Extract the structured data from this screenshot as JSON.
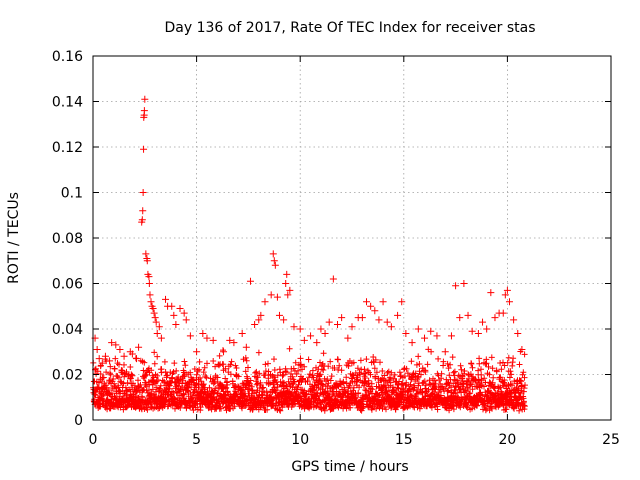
{
  "chart_data": {
    "type": "scatter",
    "title": "Day 136 of 2017, Rate Of TEC Index for receiver stas",
    "xlabel": "GPS time / hours",
    "ylabel": "ROTI / TECUs",
    "xlim": [
      0,
      25
    ],
    "ylim": [
      0,
      0.16
    ],
    "xticks": [
      0,
      5,
      10,
      15,
      20,
      25
    ],
    "xtick_labels": [
      "0",
      "5",
      "10",
      "15",
      "20",
      "25"
    ],
    "yticks": [
      0,
      0.02,
      0.04,
      0.06,
      0.08,
      0.1,
      0.12,
      0.14,
      0.16
    ],
    "ytick_labels": [
      "0",
      "0.02",
      "0.04",
      "0.06",
      "0.08",
      "0.1",
      "0.12",
      "0.14",
      "0.16"
    ],
    "grid": true,
    "marker": "plus",
    "color": "#ff0000",
    "series": [
      {
        "name": "ROTI",
        "points": [
          [
            0.1,
            0.036
          ],
          [
            0.2,
            0.031
          ],
          [
            0.3,
            0.027
          ],
          [
            0.45,
            0.025
          ],
          [
            0.6,
            0.028
          ],
          [
            0.8,
            0.026
          ],
          [
            0.9,
            0.034
          ],
          [
            1.1,
            0.033
          ],
          [
            1.3,
            0.031
          ],
          [
            1.5,
            0.028
          ],
          [
            1.8,
            0.03
          ],
          [
            1.9,
            0.029
          ],
          [
            2.1,
            0.027
          ],
          [
            2.2,
            0.032
          ],
          [
            2.35,
            0.087
          ],
          [
            2.38,
            0.088
          ],
          [
            2.4,
            0.092
          ],
          [
            2.42,
            0.1
          ],
          [
            2.44,
            0.119
          ],
          [
            2.45,
            0.133
          ],
          [
            2.47,
            0.134
          ],
          [
            2.48,
            0.136
          ],
          [
            2.5,
            0.141
          ],
          [
            2.55,
            0.073
          ],
          [
            2.6,
            0.071
          ],
          [
            2.62,
            0.07
          ],
          [
            2.65,
            0.064
          ],
          [
            2.7,
            0.063
          ],
          [
            2.72,
            0.06
          ],
          [
            2.75,
            0.055
          ],
          [
            2.8,
            0.052
          ],
          [
            2.85,
            0.05
          ],
          [
            2.9,
            0.049
          ],
          [
            2.95,
            0.047
          ],
          [
            3.0,
            0.045
          ],
          [
            3.05,
            0.043
          ],
          [
            3.1,
            0.038
          ],
          [
            3.2,
            0.041
          ],
          [
            3.3,
            0.036
          ],
          [
            3.5,
            0.053
          ],
          [
            3.6,
            0.05
          ],
          [
            3.8,
            0.05
          ],
          [
            3.9,
            0.046
          ],
          [
            4.0,
            0.042
          ],
          [
            4.2,
            0.049
          ],
          [
            4.4,
            0.047
          ],
          [
            4.5,
            0.044
          ],
          [
            4.7,
            0.037
          ],
          [
            5.0,
            0.03
          ],
          [
            5.3,
            0.038
          ],
          [
            5.5,
            0.036
          ],
          [
            5.8,
            0.035
          ],
          [
            6.3,
            0.03
          ],
          [
            6.6,
            0.035
          ],
          [
            6.8,
            0.034
          ],
          [
            7.2,
            0.038
          ],
          [
            7.4,
            0.032
          ],
          [
            7.6,
            0.061
          ],
          [
            7.8,
            0.042
          ],
          [
            8.0,
            0.044
          ],
          [
            8.1,
            0.046
          ],
          [
            8.3,
            0.052
          ],
          [
            8.6,
            0.055
          ],
          [
            8.7,
            0.073
          ],
          [
            8.75,
            0.07
          ],
          [
            8.8,
            0.068
          ],
          [
            8.9,
            0.054
          ],
          [
            9.0,
            0.046
          ],
          [
            9.2,
            0.044
          ],
          [
            9.3,
            0.06
          ],
          [
            9.35,
            0.064
          ],
          [
            9.4,
            0.055
          ],
          [
            9.5,
            0.057
          ],
          [
            9.7,
            0.041
          ],
          [
            10.0,
            0.04
          ],
          [
            10.2,
            0.035
          ],
          [
            10.5,
            0.037
          ],
          [
            10.8,
            0.034
          ],
          [
            11.0,
            0.04
          ],
          [
            11.2,
            0.038
          ],
          [
            11.4,
            0.043
          ],
          [
            11.6,
            0.062
          ],
          [
            11.8,
            0.042
          ],
          [
            12.0,
            0.045
          ],
          [
            12.3,
            0.036
          ],
          [
            12.5,
            0.041
          ],
          [
            12.8,
            0.045
          ],
          [
            13.0,
            0.045
          ],
          [
            13.2,
            0.052
          ],
          [
            13.4,
            0.05
          ],
          [
            13.6,
            0.048
          ],
          [
            13.8,
            0.044
          ],
          [
            14.0,
            0.052
          ],
          [
            14.2,
            0.043
          ],
          [
            14.4,
            0.041
          ],
          [
            14.7,
            0.046
          ],
          [
            14.9,
            0.052
          ],
          [
            15.1,
            0.038
          ],
          [
            15.4,
            0.034
          ],
          [
            15.7,
            0.04
          ],
          [
            16.0,
            0.036
          ],
          [
            16.3,
            0.039
          ],
          [
            16.6,
            0.037
          ],
          [
            17.0,
            0.03
          ],
          [
            17.3,
            0.037
          ],
          [
            17.5,
            0.059
          ],
          [
            17.7,
            0.045
          ],
          [
            17.9,
            0.06
          ],
          [
            18.1,
            0.046
          ],
          [
            18.3,
            0.039
          ],
          [
            18.6,
            0.038
          ],
          [
            18.8,
            0.043
          ],
          [
            19.0,
            0.04
          ],
          [
            19.2,
            0.056
          ],
          [
            19.4,
            0.045
          ],
          [
            19.6,
            0.047
          ],
          [
            19.8,
            0.047
          ],
          [
            19.9,
            0.055
          ],
          [
            20.0,
            0.057
          ],
          [
            20.1,
            0.052
          ],
          [
            20.3,
            0.044
          ],
          [
            20.5,
            0.038
          ],
          [
            20.7,
            0.031
          ],
          [
            20.8,
            0.014
          ]
        ]
      }
    ]
  }
}
